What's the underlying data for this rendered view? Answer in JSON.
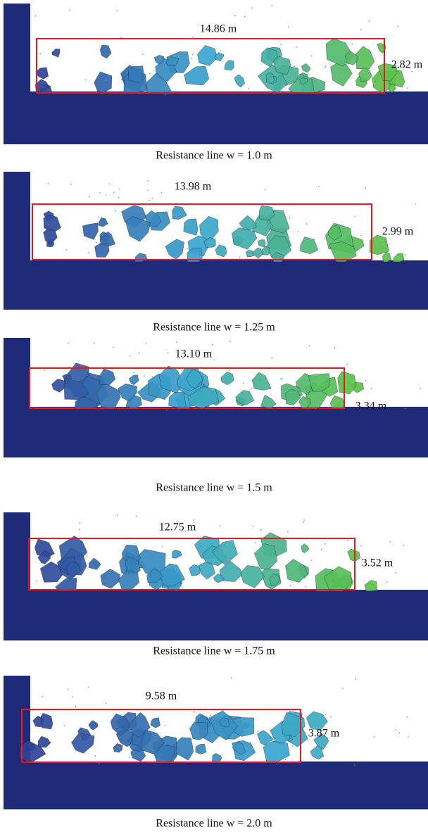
{
  "panels": [
    {
      "length_label": "14.86 m",
      "height_label": "2.82 m",
      "caption": "Resistance line w = 1.0 m"
    },
    {
      "length_label": "13.98 m",
      "height_label": "2.99 m",
      "caption": "Resistance line w = 1.25 m"
    },
    {
      "length_label": "13.10 m",
      "height_label": "3.34 m",
      "caption": "Resistance line w = 1.5 m"
    },
    {
      "length_label": "12.75 m",
      "height_label": "3.52 m",
      "caption": "Resistance line w = 1.75 m"
    },
    {
      "length_label": "9.58 m",
      "height_label": "3.87 m",
      "caption": "Resistance line w = 2.0 m"
    }
  ]
}
